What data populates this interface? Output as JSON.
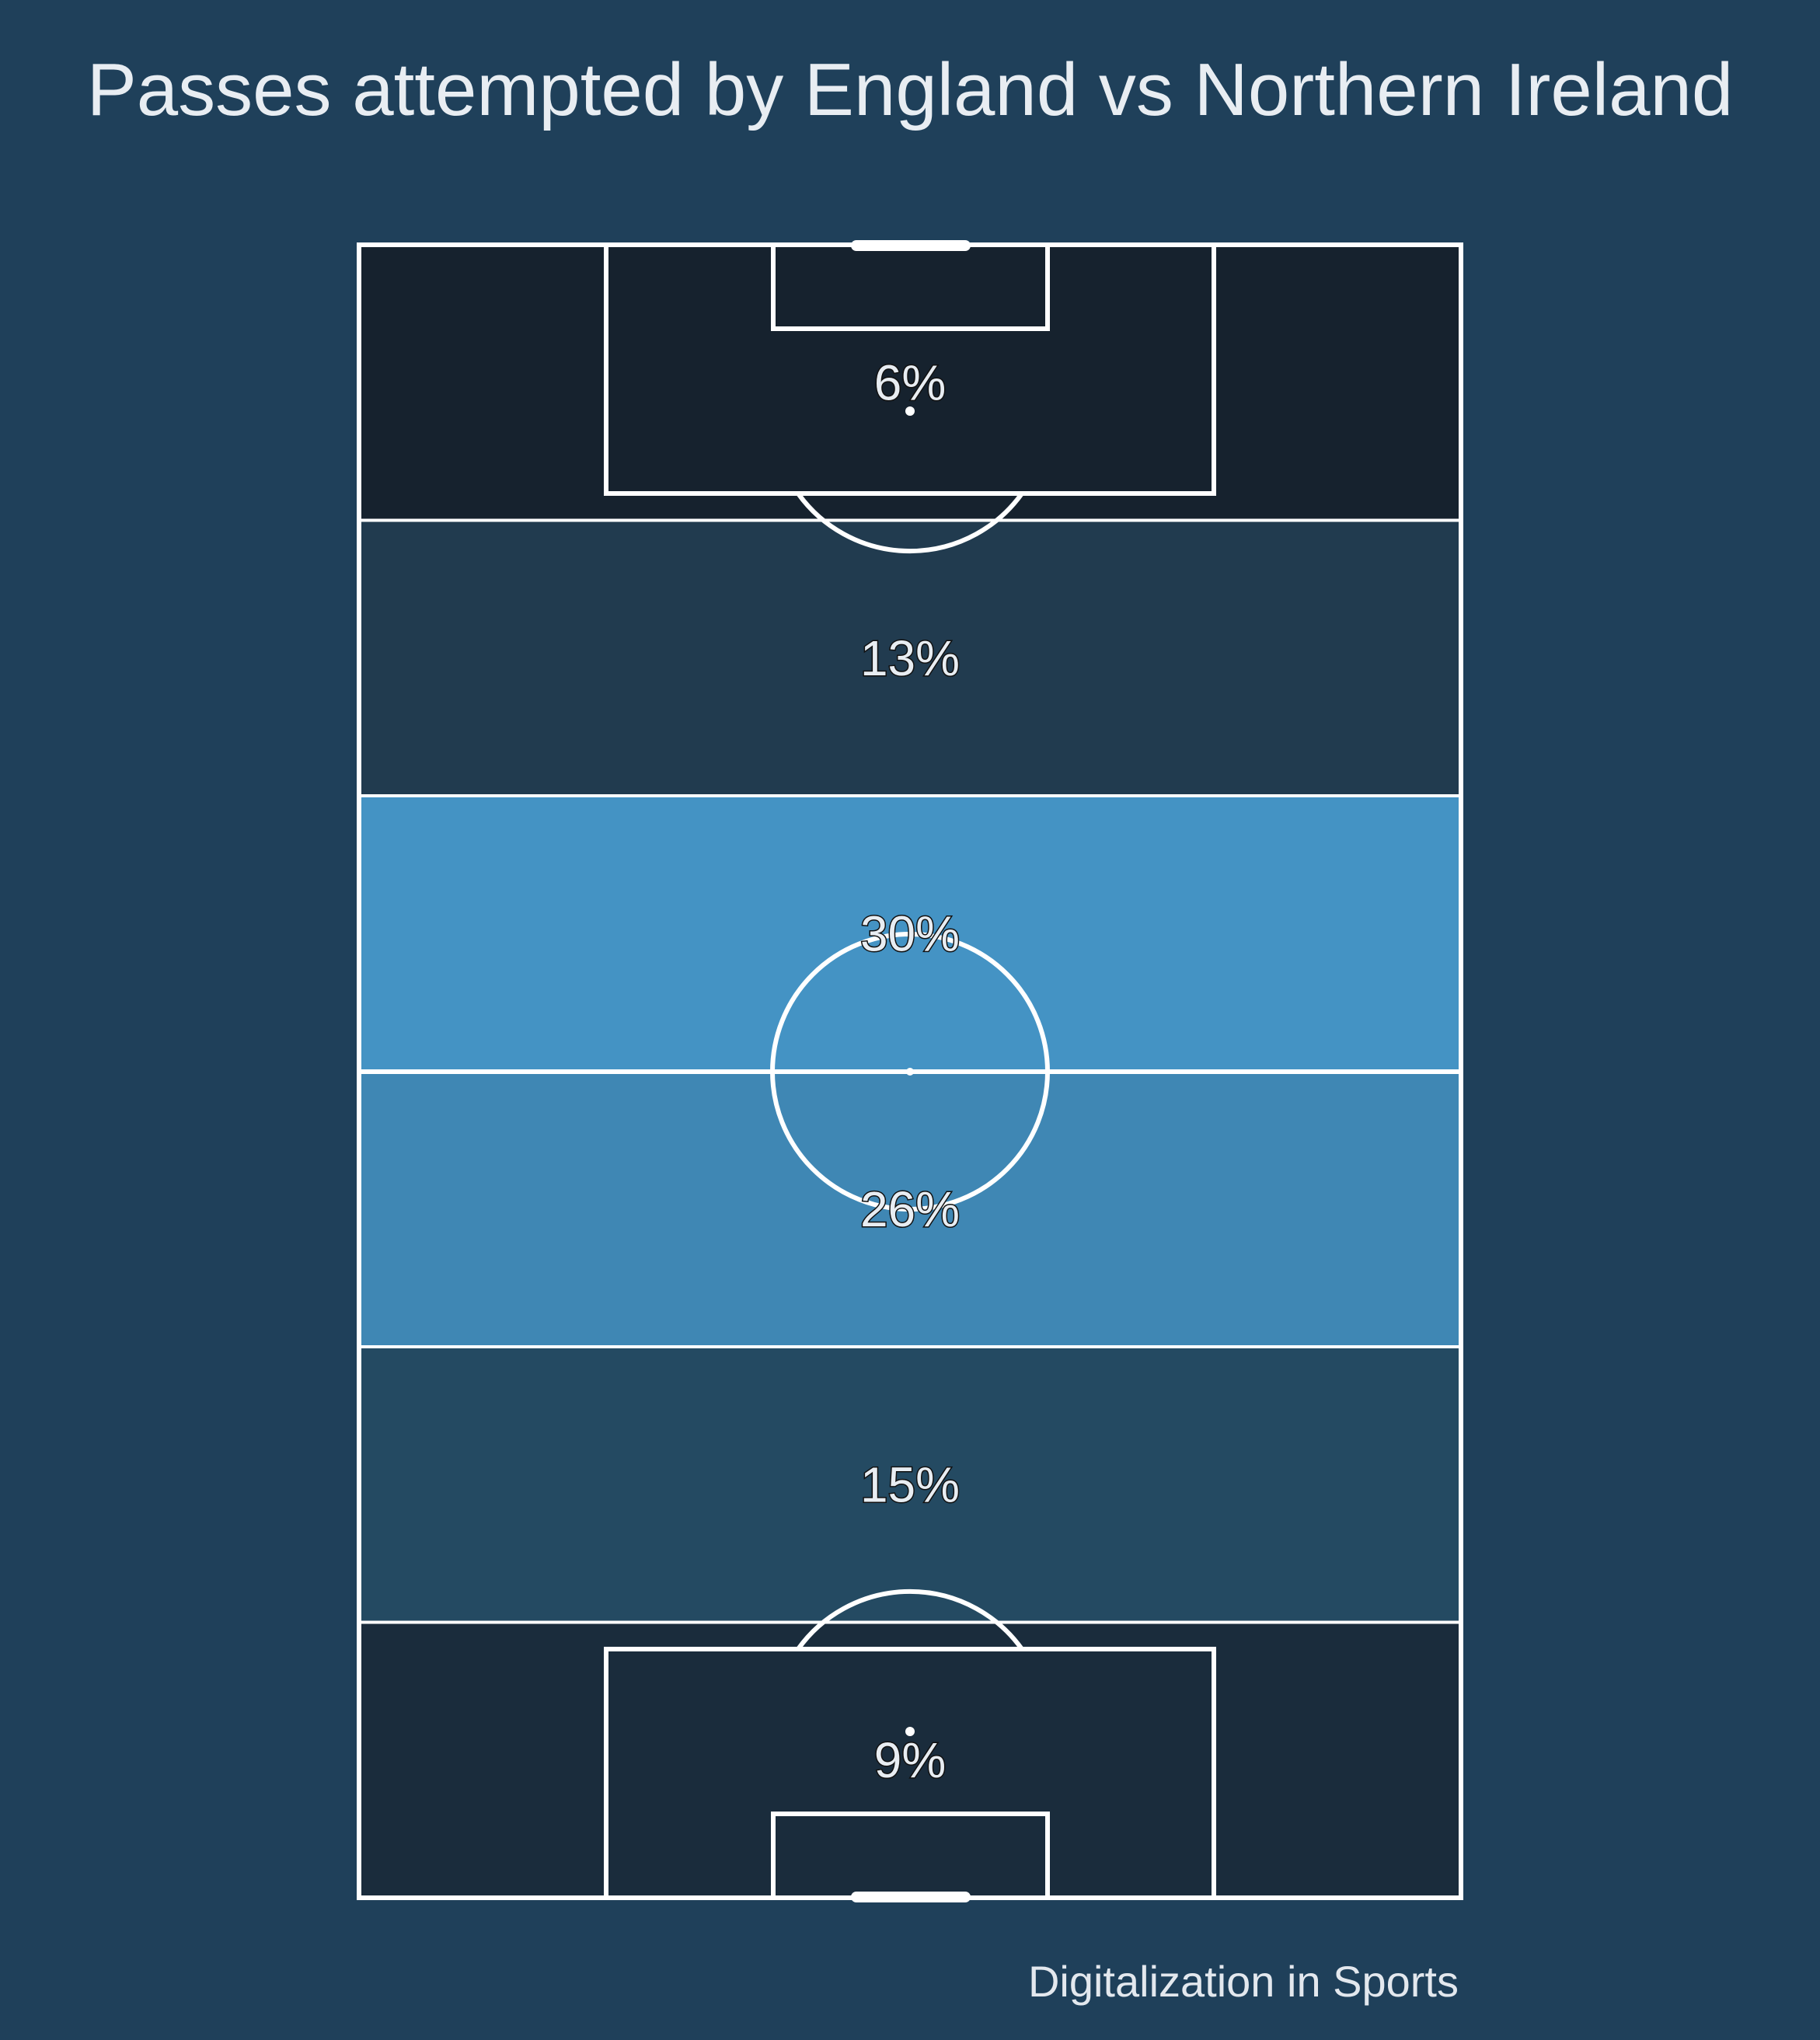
{
  "title": "Passes attempted by England vs Northern Ireland",
  "credit": "Digitalization in Sports",
  "colors": {
    "background": "#1f405a",
    "lines": "#ffffff",
    "label_text": "#e8edf2",
    "label_outline": "#111111"
  },
  "chart_data": {
    "type": "heatmap",
    "orientation": "vertical pitch, zones listed top to bottom",
    "zones": [
      {
        "label": "6%",
        "value": 6,
        "color": "#16222e"
      },
      {
        "label": "13%",
        "value": 13,
        "color": "#213b4f"
      },
      {
        "label": "30%",
        "value": 30,
        "color": "#4493c4"
      },
      {
        "label": "26%",
        "value": 26,
        "color": "#3f87b4"
      },
      {
        "label": "15%",
        "value": 15,
        "color": "#244a62"
      },
      {
        "label": "9%",
        "value": 9,
        "color": "#1a2c3c"
      }
    ]
  }
}
